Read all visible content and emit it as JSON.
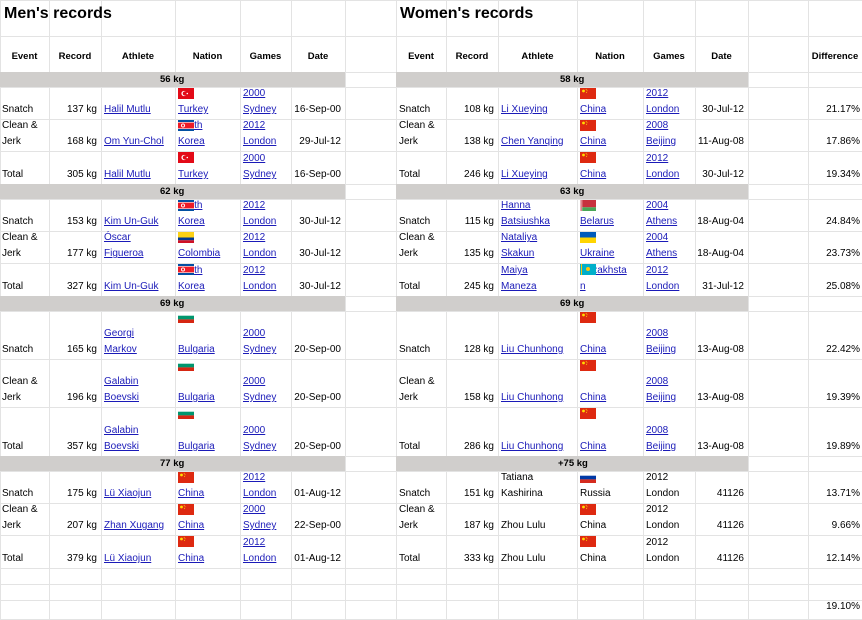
{
  "titles": {
    "men": "Men's records",
    "women": "Women's records"
  },
  "headers": {
    "men": [
      "Event",
      "Record",
      "Athlete",
      "Nation",
      "Games",
      "Date"
    ],
    "women": [
      "Event",
      "Record",
      "Athlete",
      "Nation",
      "Games",
      "Date",
      "Difference"
    ]
  },
  "classes": {
    "men": [
      "56 kg",
      "62 kg",
      "69 kg",
      "77 kg"
    ],
    "women": [
      "58 kg",
      "63 kg",
      "69 kg",
      "+75 kg"
    ]
  },
  "men_rows": [
    {
      "event": [
        "Snatch"
      ],
      "record": "137 kg",
      "athlete": [
        "Halil Mutlu"
      ],
      "nation": [
        "Turkey"
      ],
      "games": [
        "2000",
        "Sydney"
      ],
      "date": "16-Sep-00",
      "flag": "turkey-flag"
    },
    {
      "event": [
        "Clean &",
        "Jerk"
      ],
      "record": "168 kg",
      "athlete": [
        "Om Yun-Chol"
      ],
      "nation": [
        "North",
        "Korea"
      ],
      "games": [
        "2012",
        "London"
      ],
      "date": "29-Jul-12",
      "flag": "north-korea-flag"
    },
    {
      "event": [
        "Total"
      ],
      "record": "305 kg",
      "athlete": [
        "Halil Mutlu"
      ],
      "nation": [
        "Turkey"
      ],
      "games": [
        "2000",
        "Sydney"
      ],
      "date": "16-Sep-00",
      "flag": "turkey-flag"
    },
    {
      "event": [
        "Snatch"
      ],
      "record": "153 kg",
      "athlete": [
        "Kim Un-Guk"
      ],
      "nation": [
        "North",
        "Korea"
      ],
      "games": [
        "2012",
        "London"
      ],
      "date": "30-Jul-12",
      "flag": "north-korea-flag"
    },
    {
      "event": [
        "Clean &",
        "Jerk"
      ],
      "record": "177 kg",
      "athlete": [
        "Óscar",
        "Figueroa"
      ],
      "nation": [
        "Colombia"
      ],
      "games": [
        "2012",
        "London"
      ],
      "date": "30-Jul-12",
      "flag": "colombia-flag"
    },
    {
      "event": [
        "Total"
      ],
      "record": "327 kg",
      "athlete": [
        "Kim Un-Guk"
      ],
      "nation": [
        "North",
        "Korea"
      ],
      "games": [
        "2012",
        "London"
      ],
      "date": "30-Jul-12",
      "flag": "north-korea-flag"
    },
    {
      "event": [
        "Snatch"
      ],
      "record": "165 kg",
      "athlete": [
        "Georgi",
        "Markov"
      ],
      "nation": [
        "Bulgaria"
      ],
      "games": [
        "2000",
        "Sydney"
      ],
      "date": "20-Sep-00",
      "flag": "bulgaria-flag"
    },
    {
      "event": [
        "Clean &",
        "Jerk"
      ],
      "record": "196 kg",
      "athlete": [
        "Galabin",
        "Boevski"
      ],
      "nation": [
        "Bulgaria"
      ],
      "games": [
        "2000",
        "Sydney"
      ],
      "date": "20-Sep-00",
      "flag": "bulgaria-flag"
    },
    {
      "event": [
        "Total"
      ],
      "record": "357 kg",
      "athlete": [
        "Galabin",
        "Boevski"
      ],
      "nation": [
        "Bulgaria"
      ],
      "games": [
        "2000",
        "Sydney"
      ],
      "date": "20-Sep-00",
      "flag": "bulgaria-flag"
    },
    {
      "event": [
        "Snatch"
      ],
      "record": "175 kg",
      "athlete": [
        "Lü Xiaojun"
      ],
      "nation": [
        "China"
      ],
      "games": [
        "2012",
        "London"
      ],
      "date": "01-Aug-12",
      "flag": "china-flag"
    },
    {
      "event": [
        "Clean &",
        "Jerk"
      ],
      "record": "207 kg",
      "athlete": [
        "Zhan Xugang"
      ],
      "nation": [
        "China"
      ],
      "games": [
        "2000",
        "Sydney"
      ],
      "date": "22-Sep-00",
      "flag": "china-flag"
    },
    {
      "event": [
        "Total"
      ],
      "record": "379 kg",
      "athlete": [
        "Lü Xiaojun"
      ],
      "nation": [
        "China"
      ],
      "games": [
        "2012",
        "London"
      ],
      "date": "01-Aug-12",
      "flag": "china-flag"
    }
  ],
  "women_rows": [
    {
      "event": [
        "Snatch"
      ],
      "record": "108 kg",
      "athlete": [
        "Li Xueying"
      ],
      "nation": [
        "China"
      ],
      "games": [
        "2012",
        "London"
      ],
      "date": "30-Jul-12",
      "diff": "21.17%",
      "flag": "china-flag"
    },
    {
      "event": [
        "Clean &",
        "Jerk"
      ],
      "record": "138 kg",
      "athlete": [
        "Chen Yanqing"
      ],
      "nation": [
        "China"
      ],
      "games": [
        "2008",
        "Beijing"
      ],
      "date": "11-Aug-08",
      "diff": "17.86%",
      "flag": "china-flag"
    },
    {
      "event": [
        "Total"
      ],
      "record": "246 kg",
      "athlete": [
        "Li Xueying"
      ],
      "nation": [
        "China"
      ],
      "games": [
        "2012",
        "London"
      ],
      "date": "30-Jul-12",
      "diff": "19.34%",
      "flag": "china-flag"
    },
    {
      "event": [
        "Snatch"
      ],
      "record": "115 kg",
      "athlete": [
        "Hanna",
        "Batsiushka"
      ],
      "nation": [
        "Belarus"
      ],
      "games": [
        "2004",
        "Athens"
      ],
      "date": "18-Aug-04",
      "diff": "24.84%",
      "flag": "belarus-flag"
    },
    {
      "event": [
        "Clean &",
        "Jerk"
      ],
      "record": "135 kg",
      "athlete": [
        "Nataliya",
        "Skakun"
      ],
      "nation": [
        "Ukraine"
      ],
      "games": [
        "2004",
        "Athens"
      ],
      "date": "18-Aug-04",
      "diff": "23.73%",
      "flag": "ukraine-flag"
    },
    {
      "event": [
        "Total"
      ],
      "record": "245 kg",
      "athlete": [
        "Maiya",
        "Maneza"
      ],
      "nation": [
        "Kazakhsta",
        "n"
      ],
      "games": [
        "2012",
        "London"
      ],
      "date": "31-Jul-12",
      "diff": "25.08%",
      "flag": "kazakhstan-flag"
    },
    {
      "event": [
        "Snatch"
      ],
      "record": "128 kg",
      "athlete": [
        "Liu Chunhong"
      ],
      "nation": [
        "China"
      ],
      "games": [
        "2008",
        "Beijing"
      ],
      "date": "13-Aug-08",
      "diff": "22.42%",
      "flag": "china-flag"
    },
    {
      "event": [
        "Clean &",
        "Jerk"
      ],
      "record": "158 kg",
      "athlete": [
        "Liu Chunhong"
      ],
      "nation": [
        "China"
      ],
      "games": [
        "2008",
        "Beijing"
      ],
      "date": "13-Aug-08",
      "diff": "19.39%",
      "flag": "china-flag"
    },
    {
      "event": [
        "Total"
      ],
      "record": "286 kg",
      "athlete": [
        "Liu Chunhong"
      ],
      "nation": [
        "China"
      ],
      "games": [
        "2008",
        "Beijing"
      ],
      "date": "13-Aug-08",
      "diff": "19.89%",
      "flag": "china-flag"
    },
    {
      "event": [
        "Snatch"
      ],
      "record": "151 kg",
      "athlete": [
        "Tatiana",
        "Kashirina"
      ],
      "nation": [
        "Russia"
      ],
      "games": [
        "2012",
        "London"
      ],
      "date": "41126",
      "diff": "13.71%",
      "flag": "russia-flag",
      "plain": true
    },
    {
      "event": [
        "Clean &",
        "Jerk"
      ],
      "record": "187 kg",
      "athlete": [
        "Zhou Lulu"
      ],
      "nation": [
        "China"
      ],
      "games": [
        "2012",
        "London"
      ],
      "date": "41126",
      "diff": "9.66%",
      "flag": "china-flag",
      "plain": true
    },
    {
      "event": [
        "Total"
      ],
      "record": "333 kg",
      "athlete": [
        "Zhou Lulu"
      ],
      "nation": [
        "China"
      ],
      "games": [
        "2012",
        "London"
      ],
      "date": "41126",
      "diff": "12.14%",
      "flag": "china-flag",
      "plain": true
    }
  ],
  "average_difference": "19.10%"
}
